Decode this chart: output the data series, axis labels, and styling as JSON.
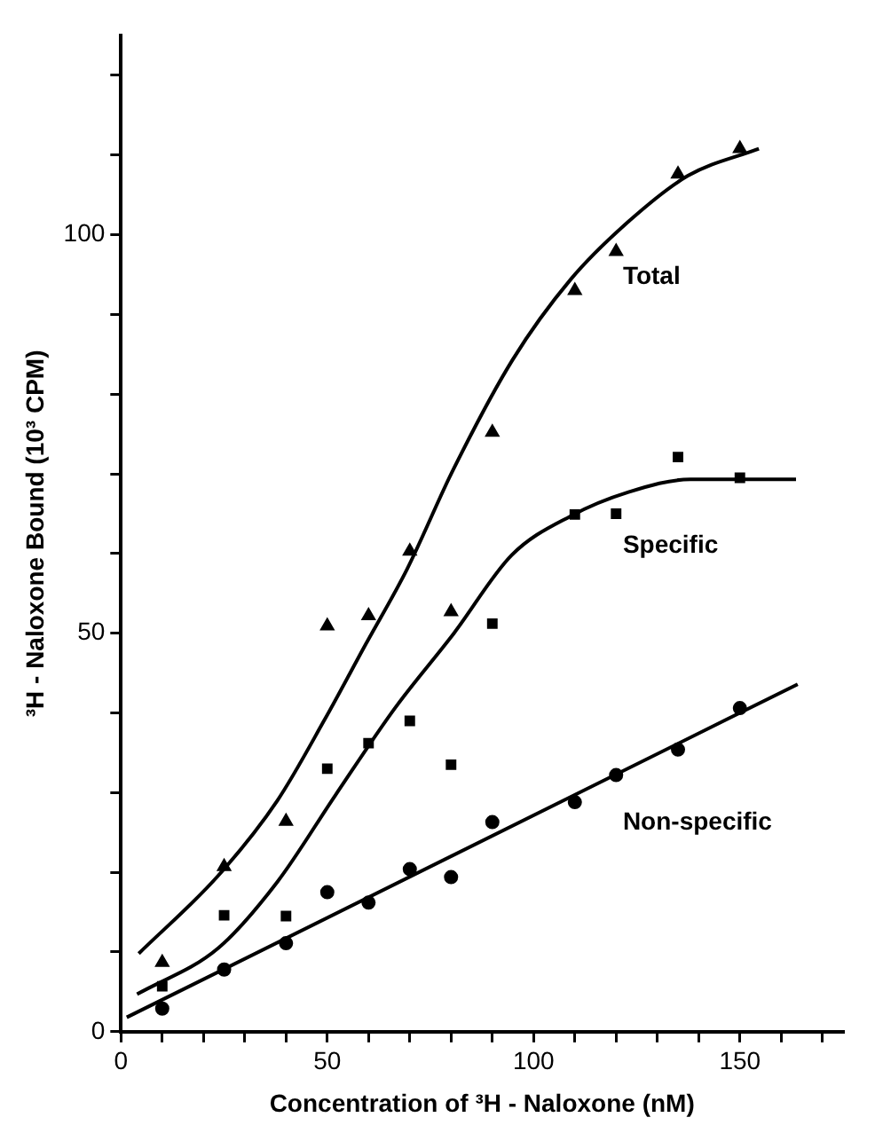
{
  "chart_data": {
    "type": "scatter",
    "xlabel": "Concentration of ³H - Naloxone (nM)",
    "ylabel": "³H - Naloxone Bound (10³ CPM)",
    "xlim": [
      0,
      175
    ],
    "ylim": [
      0,
      125
    ],
    "xticks": [
      0,
      {
        "value": 10,
        "label": null
      },
      {
        "value": 20,
        "label": null
      },
      {
        "value": 30,
        "label": null
      },
      {
        "value": 40,
        "label": null
      },
      50,
      {
        "value": 60,
        "label": null
      },
      {
        "value": 70,
        "label": null
      },
      {
        "value": 80,
        "label": null
      },
      {
        "value": 90,
        "label": null
      },
      100,
      {
        "value": 110,
        "label": null
      },
      {
        "value": 120,
        "label": null
      },
      {
        "value": 130,
        "label": null
      },
      {
        "value": 140,
        "label": null
      },
      150,
      {
        "value": 160,
        "label": null
      },
      {
        "value": 170,
        "label": null
      }
    ],
    "yticks": [
      0,
      {
        "value": 10,
        "label": null
      },
      {
        "value": 20,
        "label": null
      },
      {
        "value": 30,
        "label": null
      },
      {
        "value": 40,
        "label": null
      },
      50,
      {
        "value": 60,
        "label": null
      },
      {
        "value": 70,
        "label": null
      },
      {
        "value": 80,
        "label": null
      },
      {
        "value": 90,
        "label": null
      },
      100,
      {
        "value": 110,
        "label": null
      },
      {
        "value": 120,
        "label": null
      }
    ],
    "grid": false,
    "legend": false,
    "x": [
      10,
      25,
      40,
      50,
      60,
      70,
      80,
      90,
      110,
      120,
      135,
      150
    ],
    "series": [
      {
        "marker": "triangle",
        "color": "#000000",
        "values": [
          8.7,
          20.7,
          26.4,
          50.9,
          52.2,
          60.3,
          52.7,
          75.2,
          93,
          97.9,
          107.6,
          110.8
        ]
      },
      {
        "marker": "square",
        "color": "#000000",
        "values": [
          5.7,
          14.6,
          14.5,
          33,
          36.2,
          39,
          33.5,
          51.2,
          64.9,
          65,
          72.1,
          69.5
        ]
      },
      {
        "marker": "circle",
        "color": "#000000",
        "values": [
          2.9,
          7.8,
          11.1,
          17.5,
          16.2,
          20.4,
          19.4,
          26.3,
          28.8,
          32.2,
          35.4,
          40.6
        ]
      },
      {
        "name": "Total",
        "type": "line",
        "marker": "none",
        "line_style": "solid",
        "color": "#000000",
        "x": [
          4.3,
          23.6,
          37.9,
          49.3,
          59.3,
          69.3,
          80.6,
          94.9,
          109,
          123.1,
          137.4,
          154.6
        ],
        "values": [
          9.8,
          19.6,
          29,
          39.1,
          48.6,
          58,
          70.6,
          84.3,
          94.4,
          101.7,
          107.4,
          110.8
        ]
      },
      {
        "name": "Specific",
        "type": "line",
        "marker": "none",
        "line_style": "solid",
        "color": "#000000",
        "x": [
          3.9,
          23.6,
          37.9,
          52,
          66.4,
          80.7,
          94.7,
          109,
          123,
          138,
          163.6
        ],
        "values": [
          4.7,
          10.5,
          18.8,
          29.7,
          40.6,
          50,
          59.8,
          64.7,
          67.7,
          69.3,
          69.3
        ]
      },
      {
        "name": "Non-specific",
        "type": "line",
        "marker": "none",
        "line_style": "solid",
        "color": "#000000",
        "x": [
          1.4,
          164
        ],
        "values": [
          1.8,
          43.6
        ]
      }
    ]
  }
}
